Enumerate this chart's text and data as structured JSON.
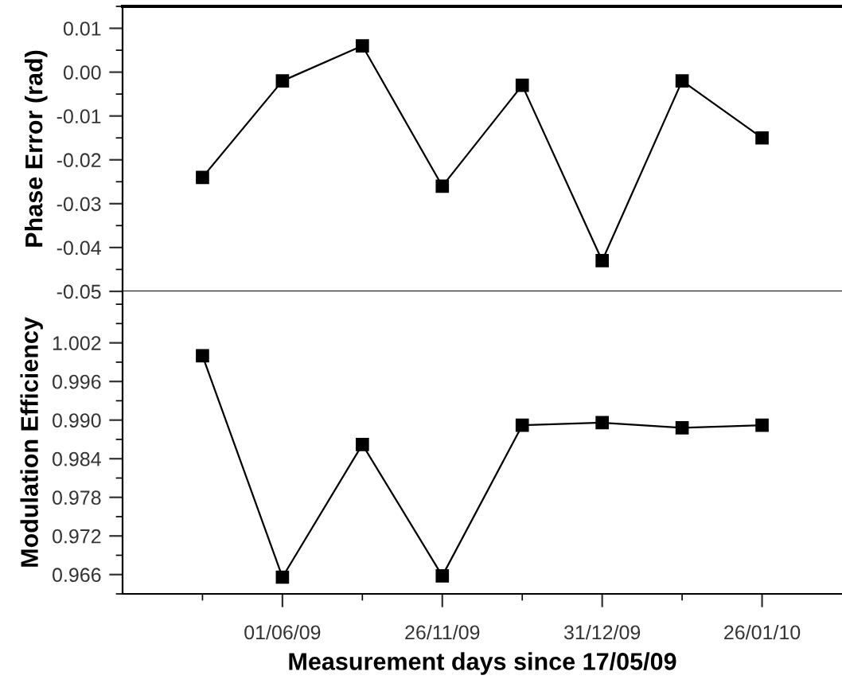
{
  "chart_data": [
    {
      "type": "line",
      "ylabel": "Phase Error (rad)",
      "categories": [
        null,
        null,
        null,
        null,
        null,
        null,
        null,
        null
      ],
      "series": [
        {
          "color": "#000000",
          "values": [
            -0.024,
            -0.002,
            0.006,
            -0.026,
            -0.003,
            -0.043,
            -0.002,
            -0.015
          ]
        }
      ],
      "ylim": [
        -0.05,
        0.015
      ],
      "yticks": [
        {
          "value": -0.05,
          "label": "-0.05"
        },
        {
          "value": -0.04,
          "label": "-0.04"
        },
        {
          "value": -0.03,
          "label": "-0.03"
        },
        {
          "value": -0.02,
          "label": "-0.02"
        },
        {
          "value": -0.01,
          "label": "-0.01"
        },
        {
          "value": 0,
          "label": "0.00"
        },
        {
          "value": 0.01,
          "label": "0.01"
        }
      ],
      "tick_labels": "y",
      "marker": "square",
      "line_style": "solid",
      "grid": false
    },
    {
      "type": "line",
      "ylabel": "Modulation Efficiency",
      "xlabel": "Measurement days since 17/05/09",
      "categories": [
        null,
        "01/06/09",
        null,
        "26/11/09",
        null,
        "31/12/09",
        null,
        "26/01/10"
      ],
      "series": [
        {
          "color": "#000000",
          "values": [
            1.0,
            0.9656,
            0.9862,
            0.9658,
            0.9892,
            0.9896,
            0.9888,
            0.9892
          ]
        }
      ],
      "ylim": [
        0.963,
        1.01
      ],
      "yticks": [
        {
          "value": 0.966,
          "label": "0.966"
        },
        {
          "value": 0.972,
          "label": "0.972"
        },
        {
          "value": 0.978,
          "label": "0.978"
        },
        {
          "value": 0.984,
          "label": "0.984"
        },
        {
          "value": 0.99,
          "label": "0.990"
        },
        {
          "value": 0.996,
          "label": "0.996"
        },
        {
          "value": 1.002,
          "label": "1.002"
        }
      ],
      "marker": "square",
      "line_style": "solid",
      "grid": false
    }
  ]
}
